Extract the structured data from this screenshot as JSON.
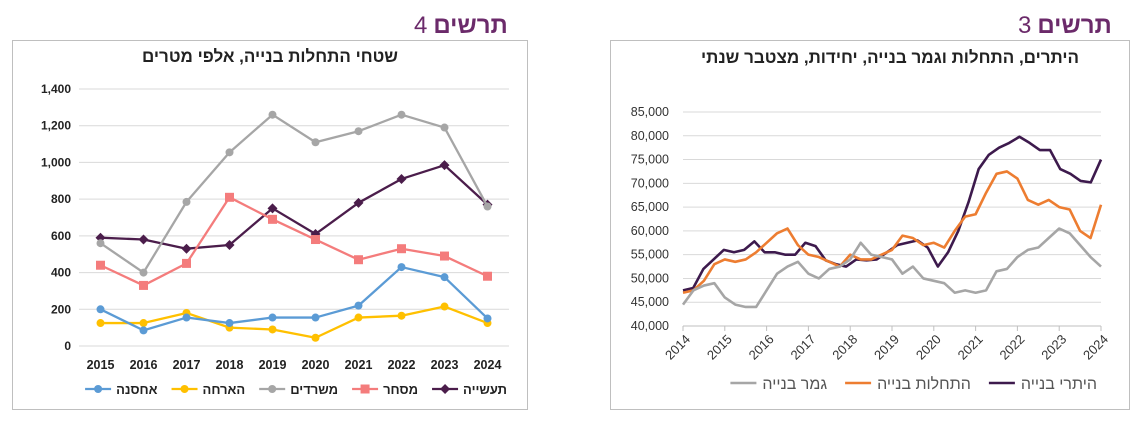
{
  "left_heading": {
    "word": "תרשים",
    "num": "4"
  },
  "right_heading": {
    "word": "תרשים",
    "num": "3"
  },
  "chart_data": [
    {
      "type": "line",
      "title": "שטחי התחלות בנייה, אלפי מטרים",
      "x": [
        "2015",
        "2016",
        "2017",
        "2018",
        "2019",
        "2020",
        "2021",
        "2022",
        "2023",
        "2024"
      ],
      "ylim": [
        0,
        1400
      ],
      "yticks": [
        "0",
        "200",
        "400",
        "600",
        "800",
        "1,000",
        "1,200",
        "1,400"
      ],
      "ytick_values": [
        0,
        200,
        400,
        600,
        800,
        1000,
        1200,
        1400
      ],
      "grid": true,
      "legend": "bottom",
      "series": [
        {
          "name": "תעשייה",
          "color": "#4b1d4b",
          "marker": "diamond",
          "values": [
            590,
            580,
            530,
            550,
            750,
            610,
            780,
            910,
            985,
            770
          ]
        },
        {
          "name": "מסחר",
          "color": "#f47c7c",
          "marker": "square",
          "values": [
            440,
            330,
            450,
            810,
            690,
            580,
            470,
            530,
            490,
            380
          ]
        },
        {
          "name": "משרדים",
          "color": "#a6a6a6",
          "marker": "circle",
          "values": [
            560,
            400,
            785,
            1055,
            1260,
            1110,
            1170,
            1260,
            1190,
            760
          ]
        },
        {
          "name": "הארחה",
          "color": "#ffc000",
          "marker": "circle",
          "values": [
            125,
            125,
            180,
            100,
            90,
            45,
            155,
            165,
            215,
            125
          ]
        },
        {
          "name": "אחסנה",
          "color": "#5b9bd5",
          "marker": "circle",
          "values": [
            200,
            85,
            155,
            125,
            155,
            155,
            220,
            430,
            375,
            150
          ]
        }
      ]
    },
    {
      "type": "line",
      "title": "היתרים, התחלות וגמר בנייה, יחידות, מצטבר שנתי",
      "xticks": [
        "2014",
        "2015",
        "2016",
        "2017",
        "2018",
        "2019",
        "2020",
        "2021",
        "2022",
        "2023",
        "2024"
      ],
      "ylim": [
        40000,
        85000
      ],
      "yticks": [
        "40,000",
        "45,000",
        "50,000",
        "55,000",
        "60,000",
        "65,000",
        "70,000",
        "75,000",
        "80,000",
        "85,000"
      ],
      "ytick_values": [
        40000,
        45000,
        50000,
        55000,
        60000,
        65000,
        70000,
        75000,
        80000,
        85000
      ],
      "grid": true,
      "legend": "bottom",
      "series": [
        {
          "name": "היתרי בנייה",
          "color": "#3d1a4d",
          "values": [
            47500,
            48000,
            52000,
            54000,
            56000,
            55500,
            56000,
            57800,
            55500,
            55500,
            55000,
            55000,
            57500,
            56800,
            53800,
            53000,
            52500,
            54000,
            53800,
            54000,
            55500,
            57000,
            57500,
            58000,
            56500,
            52500,
            55500,
            60000,
            66000,
            73000,
            76000,
            77500,
            78500,
            79800,
            78500,
            77000,
            77000,
            73000,
            72000,
            70500,
            70200,
            75000
          ]
        },
        {
          "name": "התחלות בנייה",
          "color": "#ed7d31",
          "values": [
            47000,
            47500,
            49500,
            53000,
            54000,
            53500,
            54000,
            55500,
            57500,
            59500,
            60500,
            57000,
            55000,
            54500,
            53500,
            52500,
            55000,
            54000,
            54000,
            55000,
            56000,
            59000,
            58500,
            57000,
            57500,
            56500,
            60000,
            63000,
            63500,
            68000,
            72000,
            72500,
            71000,
            66500,
            65500,
            66500,
            65000,
            64500,
            60000,
            58500,
            65500
          ]
        },
        {
          "name": "גמר בנייה",
          "color": "#a6a6a6",
          "values": [
            44500,
            47500,
            48500,
            49000,
            46000,
            44500,
            44000,
            44000,
            47500,
            51000,
            52500,
            53500,
            51000,
            50000,
            52000,
            52500,
            54000,
            57500,
            55000,
            54500,
            54000,
            51000,
            52500,
            50000,
            49500,
            49000,
            47000,
            47500,
            47000,
            47500,
            51500,
            52000,
            54500,
            56000,
            56500,
            58500,
            60500,
            59500,
            57000,
            54500,
            52500
          ]
        }
      ]
    }
  ]
}
